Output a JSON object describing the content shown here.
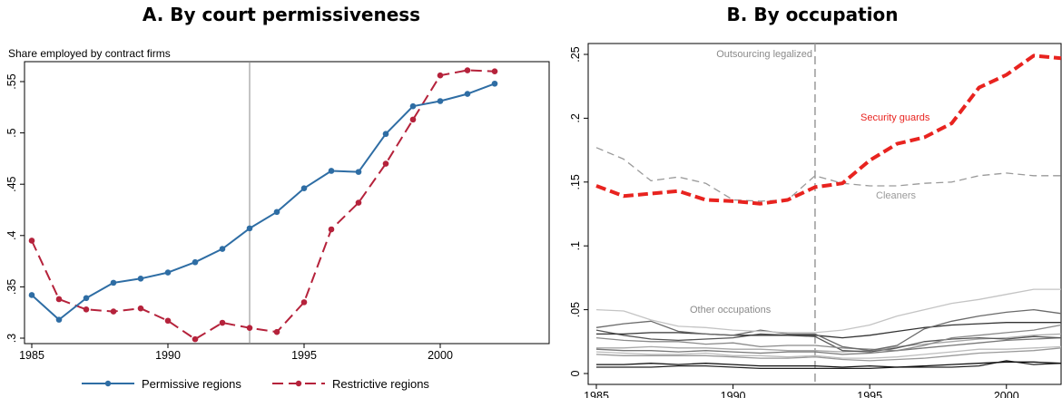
{
  "charts": [
    {
      "title": "A. By court permissiveness",
      "ylabel": "Share employed by contract firms",
      "type": "line",
      "x_ticks": [
        "1985",
        "1990",
        "1995",
        "2000"
      ],
      "y_ticks": [
        ".3",
        ".35",
        ".4",
        ".45",
        ".5",
        ".55"
      ],
      "legend": [
        "Permissive regions",
        "Restrictive regions"
      ]
    },
    {
      "title": "B. By occupation",
      "type": "line",
      "x_ticks": [
        "1985",
        "1990",
        "1995",
        "2000"
      ],
      "y_ticks": [
        "0",
        ".05",
        ".1",
        ".15",
        ".2",
        ".25"
      ],
      "annotations": {
        "event": "Outsourcing legalized",
        "security": "Security guards",
        "cleaners": "Cleaners",
        "other": "Other occupations"
      }
    }
  ],
  "chart_data": [
    {
      "type": "line",
      "title": "A. By court permissiveness",
      "ylabel": "Share employed by contract firms",
      "xlim": [
        1985,
        2002
      ],
      "ylim": [
        0.3,
        0.56
      ],
      "vline": 1993,
      "legend_placement": "bottom",
      "x": [
        1985,
        1986,
        1987,
        1988,
        1989,
        1990,
        1991,
        1992,
        1993,
        1994,
        1995,
        1996,
        1997,
        1998,
        1999,
        2000,
        2001,
        2002
      ],
      "series": [
        {
          "name": "Permissive regions",
          "color": "#2e6da4",
          "style": "solid",
          "values": [
            0.342,
            0.318,
            0.339,
            0.354,
            0.358,
            0.364,
            0.374,
            0.387,
            0.407,
            0.423,
            0.446,
            0.463,
            0.462,
            0.499,
            0.526,
            0.531,
            0.538,
            0.548
          ]
        },
        {
          "name": "Restrictive regions",
          "color": "#b5223b",
          "style": "dashed",
          "values": [
            0.395,
            0.338,
            0.328,
            0.326,
            0.329,
            0.317,
            0.299,
            0.315,
            0.31,
            0.306,
            0.335,
            0.406,
            0.432,
            0.47,
            0.513,
            0.556,
            0.561,
            0.56
          ]
        }
      ]
    },
    {
      "type": "line",
      "title": "B. By occupation",
      "xlim": [
        1985,
        2002
      ],
      "ylim": [
        0,
        0.25
      ],
      "vline": 1993,
      "x": [
        1985,
        1986,
        1987,
        1988,
        1989,
        1990,
        1991,
        1992,
        1993,
        1994,
        1995,
        1996,
        1997,
        1998,
        1999,
        2000,
        2001,
        2002
      ],
      "series": [
        {
          "name": "Security guards",
          "color": "#e8231f",
          "style": "dashed-thick",
          "values": [
            0.147,
            0.139,
            0.141,
            0.143,
            0.136,
            0.135,
            0.133,
            0.136,
            0.146,
            0.149,
            0.167,
            0.18,
            0.185,
            0.196,
            0.224,
            0.234,
            0.249,
            0.247
          ]
        },
        {
          "name": "Cleaners",
          "color": "#9a9a9a",
          "style": "dashed",
          "values": [
            0.177,
            0.168,
            0.151,
            0.154,
            0.149,
            0.136,
            0.135,
            0.136,
            0.155,
            0.149,
            0.147,
            0.147,
            0.149,
            0.15,
            0.155,
            0.157,
            0.155,
            0.155
          ]
        },
        {
          "name": "Other occupations",
          "color": "#c4c4c4",
          "style": "solid",
          "values": [
            0.05,
            0.049,
            0.042,
            0.037,
            0.036,
            0.034,
            0.033,
            0.032,
            0.032,
            0.034,
            0.038,
            0.045,
            0.05,
            0.055,
            0.058,
            0.062,
            0.066,
            0.066
          ]
        },
        {
          "name": "Other occupations",
          "color": "#6a6a6a",
          "style": "solid",
          "values": [
            0.036,
            0.039,
            0.041,
            0.033,
            0.031,
            0.03,
            0.034,
            0.031,
            0.031,
            0.021,
            0.018,
            0.022,
            0.035,
            0.041,
            0.045,
            0.048,
            0.05,
            0.047
          ]
        },
        {
          "name": "Other occupations",
          "color": "#333333",
          "style": "solid",
          "values": [
            0.031,
            0.031,
            0.032,
            0.032,
            0.031,
            0.03,
            0.03,
            0.03,
            0.03,
            0.028,
            0.03,
            0.033,
            0.036,
            0.038,
            0.039,
            0.04,
            0.04,
            0.04
          ]
        },
        {
          "name": "Other occupations",
          "color": "#8a8a8a",
          "style": "solid",
          "values": [
            0.028,
            0.026,
            0.025,
            0.025,
            0.023,
            0.024,
            0.021,
            0.022,
            0.022,
            0.02,
            0.019,
            0.018,
            0.022,
            0.028,
            0.03,
            0.032,
            0.034,
            0.038
          ]
        },
        {
          "name": "Other occupations",
          "color": "#555555",
          "style": "solid",
          "values": [
            0.034,
            0.03,
            0.027,
            0.026,
            0.027,
            0.028,
            0.031,
            0.03,
            0.029,
            0.018,
            0.017,
            0.02,
            0.025,
            0.027,
            0.028,
            0.027,
            0.029,
            0.028
          ]
        },
        {
          "name": "Other occupations",
          "color": "#a8a8a8",
          "style": "solid",
          "values": [
            0.02,
            0.02,
            0.021,
            0.02,
            0.02,
            0.019,
            0.019,
            0.018,
            0.018,
            0.017,
            0.018,
            0.021,
            0.023,
            0.025,
            0.027,
            0.028,
            0.03,
            0.031
          ]
        },
        {
          "name": "Other occupations",
          "color": "#777777",
          "style": "solid",
          "values": [
            0.019,
            0.018,
            0.018,
            0.017,
            0.018,
            0.017,
            0.016,
            0.017,
            0.017,
            0.015,
            0.016,
            0.018,
            0.02,
            0.022,
            0.024,
            0.026,
            0.027,
            0.028
          ]
        },
        {
          "name": "Other occupations",
          "color": "#bdbdbd",
          "style": "solid",
          "values": [
            0.017,
            0.016,
            0.015,
            0.015,
            0.016,
            0.014,
            0.014,
            0.013,
            0.014,
            0.012,
            0.012,
            0.013,
            0.015,
            0.017,
            0.019,
            0.019,
            0.02,
            0.021
          ]
        },
        {
          "name": "Other occupations",
          "color": "#999999",
          "style": "solid",
          "values": [
            0.015,
            0.014,
            0.014,
            0.014,
            0.014,
            0.013,
            0.012,
            0.012,
            0.013,
            0.011,
            0.01,
            0.011,
            0.012,
            0.014,
            0.016,
            0.017,
            0.018,
            0.02
          ]
        },
        {
          "name": "Other occupations",
          "color": "#111111",
          "style": "solid",
          "values": [
            0.007,
            0.007,
            0.008,
            0.007,
            0.008,
            0.007,
            0.006,
            0.006,
            0.006,
            0.005,
            0.006,
            0.005,
            0.006,
            0.007,
            0.008,
            0.009,
            0.009,
            0.008
          ]
        },
        {
          "name": "Other occupations",
          "color": "#222222",
          "style": "solid",
          "values": [
            0.005,
            0.005,
            0.005,
            0.006,
            0.006,
            0.005,
            0.004,
            0.004,
            0.004,
            0.004,
            0.004,
            0.005,
            0.005,
            0.005,
            0.006,
            0.01,
            0.007,
            0.008
          ]
        }
      ]
    }
  ]
}
